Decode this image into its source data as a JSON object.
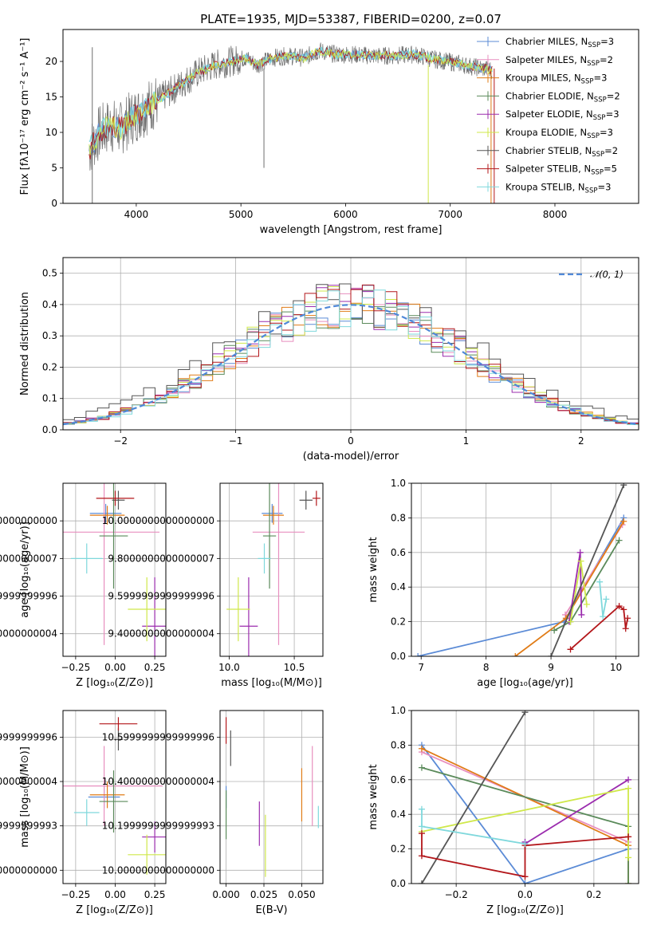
{
  "colors": {
    "Chabrier MILES": "#5b8bd6",
    "Salpeter MILES": "#e88fbf",
    "Kroupa MILES": "#e07b16",
    "Chabrier ELODIE": "#5a8a5a",
    "Salpeter ELODIE": "#9b2cae",
    "Kroupa ELODIE": "#cfe84a",
    "Chabrier STELIB": "#555555",
    "Salpeter STELIB": "#b3161a",
    "Kroupa STELIB": "#7fd8dc",
    "normal": "#4f88d8"
  },
  "chart_data": [
    {
      "id": "spectrum",
      "type": "line",
      "title": "PLATE=1935, MJD=53387, FIBERID=0200, z=0.07",
      "xlabel": "wavelength [Angstrom, rest frame]",
      "ylabel": "Flux [fλ10⁻¹⁷ erg cm⁻² s⁻¹ A⁻¹]",
      "xlim": [
        3300,
        8800
      ],
      "ylim": [
        0,
        24.5
      ],
      "xticks": [
        4000,
        5000,
        6000,
        7000,
        8000
      ],
      "yticks": [
        0,
        5,
        10,
        15,
        20
      ],
      "grid": false,
      "legend_position": "top-right",
      "legend": [
        {
          "label": "Chabrier MILES, N",
          "sub": "SSP",
          "tail": "=3",
          "series": "Chabrier MILES"
        },
        {
          "label": "Salpeter MILES, N",
          "sub": "SSP",
          "tail": "=2",
          "series": "Salpeter MILES"
        },
        {
          "label": "Kroupa MILES, N",
          "sub": "SSP",
          "tail": "=3",
          "series": "Kroupa MILES"
        },
        {
          "label": "Chabrier ELODIE, N",
          "sub": "SSP",
          "tail": "=2",
          "series": "Chabrier ELODIE"
        },
        {
          "label": "Salpeter ELODIE, N",
          "sub": "SSP",
          "tail": "=3",
          "series": "Salpeter ELODIE"
        },
        {
          "label": "Kroupa ELODIE, N",
          "sub": "SSP",
          "tail": "=3",
          "series": "Kroupa ELODIE"
        },
        {
          "label": "Chabrier STELIB, N",
          "sub": "SSP",
          "tail": "=2",
          "series": "Chabrier STELIB"
        },
        {
          "label": "Salpeter STELIB, N",
          "sub": "SSP",
          "tail": "=5",
          "series": "Salpeter STELIB"
        },
        {
          "label": "Kroupa STELIB, N",
          "sub": "SSP",
          "tail": "=3",
          "series": "Kroupa STELIB"
        }
      ],
      "data_x_range": [
        3550,
        7400
      ],
      "continuum": [
        [
          3550,
          7.5
        ],
        [
          3650,
          10
        ],
        [
          3750,
          11
        ],
        [
          3850,
          10.5
        ],
        [
          3950,
          12
        ],
        [
          4050,
          13
        ],
        [
          4150,
          14
        ],
        [
          4300,
          15.5
        ],
        [
          4450,
          17
        ],
        [
          4600,
          18.5
        ],
        [
          4750,
          19.5
        ],
        [
          4900,
          20
        ],
        [
          5050,
          20.5
        ],
        [
          5150,
          19.5
        ],
        [
          5300,
          20.5
        ],
        [
          5450,
          20.8
        ],
        [
          5600,
          20.5
        ],
        [
          5750,
          21.5
        ],
        [
          5900,
          21
        ],
        [
          6050,
          21
        ],
        [
          6250,
          20.8
        ],
        [
          6450,
          20.8
        ],
        [
          6650,
          21
        ],
        [
          6850,
          20.3
        ],
        [
          7050,
          19.8
        ],
        [
          7200,
          19.3
        ],
        [
          7400,
          18.8
        ]
      ],
      "model_series": [
        "Chabrier MILES",
        "Kroupa STELIB",
        "Salpeter STELIB",
        "Kroupa ELODIE"
      ],
      "features": [
        {
          "series": "Kroupa ELODIE",
          "x": 6790,
          "y_from": 19.5,
          "y_to": 0
        },
        {
          "series": "Kroupa MILES",
          "x": 7390,
          "y_from": 19,
          "y_to": 0
        },
        {
          "series": "Salpeter STELIB",
          "x": 7420,
          "y_from": 19,
          "y_to": 0
        },
        {
          "series": "data",
          "x": 5220,
          "y_from": 19,
          "y_to": 5
        },
        {
          "series": "data",
          "x": 3580,
          "y_from": 0,
          "y_to": 22
        }
      ]
    },
    {
      "id": "residuals",
      "type": "histogram",
      "xlabel": "(data-model)/error",
      "ylabel": "Normed distribution",
      "xlim": [
        -2.5,
        2.5
      ],
      "ylim": [
        0,
        0.55
      ],
      "xticks": [
        -2,
        -1,
        0,
        1,
        2
      ],
      "yticks": [
        0.0,
        0.1,
        0.2,
        0.3,
        0.4,
        0.5
      ],
      "grid": true,
      "legend_position": "top-right",
      "legend": [
        {
          "label": "𝒩(0, 1)",
          "series": "normal",
          "style": "dashed"
        }
      ],
      "bins": {
        "start": -2.5,
        "width": 0.1,
        "count": 50
      },
      "normal": {
        "mean": 0,
        "sigma": 1
      }
    },
    {
      "id": "age-vs-Z",
      "type": "errorbar",
      "xlabel": "Z [log₁₀(Z/Z⊙)]",
      "ylabel": "age  [log₁₀(age/yr)]",
      "xlim": [
        -0.33,
        0.32
      ],
      "ylim": [
        9.28,
        10.2
      ],
      "xticks": [
        -0.25,
        0.0,
        0.25
      ],
      "xticklabels": [
        "−0.25",
        "0.00",
        "0.25"
      ],
      "yticks": [
        9.4,
        9.6,
        9.8,
        10.0
      ],
      "grid": true,
      "points": [
        {
          "series": "Chabrier MILES",
          "x": -0.06,
          "xerr": 0.1,
          "y": 10.04,
          "yerr": 0.05
        },
        {
          "series": "Salpeter MILES",
          "x": -0.07,
          "xerr": 0.35,
          "y": 9.94,
          "yerr": 0.6
        },
        {
          "series": "Kroupa MILES",
          "x": -0.05,
          "xerr": 0.11,
          "y": 10.03,
          "yerr": 0.05
        },
        {
          "series": "Chabrier ELODIE",
          "x": -0.01,
          "xerr": 0.09,
          "y": 9.92,
          "yerr": 0.28
        },
        {
          "series": "Salpeter ELODIE",
          "x": 0.25,
          "xerr": 0.08,
          "y": 9.44,
          "yerr": 0.26
        },
        {
          "series": "Kroupa ELODIE",
          "x": 0.2,
          "xerr": 0.12,
          "y": 9.53,
          "yerr": 0.17
        },
        {
          "series": "Chabrier STELIB",
          "x": 0.02,
          "xerr": 0.04,
          "y": 10.11,
          "yerr": 0.05
        },
        {
          "series": "Salpeter STELIB",
          "x": 0.0,
          "xerr": 0.12,
          "y": 10.12,
          "yerr": 0.04
        },
        {
          "series": "Kroupa STELIB",
          "x": -0.18,
          "xerr": 0.1,
          "y": 9.8,
          "yerr": 0.08
        }
      ]
    },
    {
      "id": "age-vs-mass",
      "type": "errorbar",
      "xlabel": "mass [log₁₀(M/M⊙)]",
      "ylabel": "",
      "xlim": [
        9.93,
        10.72
      ],
      "ylim": [
        9.28,
        10.2
      ],
      "xticks": [
        10.0,
        10.5
      ],
      "xticklabels": [
        "10.0",
        "10.5"
      ],
      "yticks": [
        9.4,
        9.6,
        9.8,
        10.0
      ],
      "grid": true,
      "points": [
        {
          "series": "Chabrier MILES",
          "x": 10.33,
          "xerr": 0.08,
          "y": 10.04,
          "yerr": 0.05
        },
        {
          "series": "Salpeter MILES",
          "x": 10.38,
          "xerr": 0.2,
          "y": 9.94,
          "yerr": 0.6
        },
        {
          "series": "Kroupa MILES",
          "x": 10.34,
          "xerr": 0.08,
          "y": 10.03,
          "yerr": 0.05
        },
        {
          "series": "Chabrier ELODIE",
          "x": 10.31,
          "xerr": 0.05,
          "y": 9.92,
          "yerr": 0.28
        },
        {
          "series": "Salpeter ELODIE",
          "x": 10.15,
          "xerr": 0.07,
          "y": 9.44,
          "yerr": 0.26
        },
        {
          "series": "Kroupa ELODIE",
          "x": 10.07,
          "xerr": 0.09,
          "y": 9.53,
          "yerr": 0.17
        },
        {
          "series": "Chabrier STELIB",
          "x": 10.59,
          "xerr": 0.05,
          "y": 10.11,
          "yerr": 0.05
        },
        {
          "series": "Salpeter STELIB",
          "x": 10.67,
          "xerr": 0.03,
          "y": 10.12,
          "yerr": 0.04
        },
        {
          "series": "Kroupa STELIB",
          "x": 10.27,
          "xerr": 0.05,
          "y": 9.8,
          "yerr": 0.08
        }
      ]
    },
    {
      "id": "massweight-vs-age",
      "type": "line",
      "xlabel": "age  [log₁₀(age/yr)]",
      "ylabel": "mass weight",
      "xlim": [
        6.85,
        10.35
      ],
      "ylim": [
        0,
        1
      ],
      "xticks": [
        7,
        8,
        9,
        10
      ],
      "xticklabels": [
        "7",
        "8",
        "9",
        "10"
      ],
      "yticks": [
        0.0,
        0.2,
        0.4,
        0.6,
        0.8,
        1.0
      ],
      "grid": true,
      "series": [
        {
          "name": "Chabrier MILES",
          "x": [
            6.95,
            9.2,
            10.12
          ],
          "y": [
            0.0,
            0.2,
            0.8
          ]
        },
        {
          "name": "Salpeter MILES",
          "x": [
            9.22,
            10.1
          ],
          "y": [
            0.24,
            0.76
          ]
        },
        {
          "name": "Kroupa MILES",
          "x": [
            8.45,
            9.23,
            10.12
          ],
          "y": [
            0.0,
            0.22,
            0.78
          ]
        },
        {
          "name": "Chabrier ELODIE",
          "x": [
            9.05,
            9.3,
            10.05
          ],
          "y": [
            0.15,
            0.2,
            0.67
          ]
        },
        {
          "name": "Salpeter ELODIE",
          "x": [
            9.28,
            9.45,
            9.47
          ],
          "y": [
            0.2,
            0.6,
            0.24
          ]
        },
        {
          "name": "Kroupa ELODIE",
          "x": [
            9.3,
            9.46,
            9.55
          ],
          "y": [
            0.2,
            0.55,
            0.3
          ]
        },
        {
          "name": "Chabrier STELIB",
          "x": [
            9.0,
            10.12
          ],
          "y": [
            0.0,
            0.99
          ]
        },
        {
          "name": "Salpeter STELIB",
          "x": [
            9.3,
            10.05,
            10.12,
            10.15,
            10.18
          ],
          "y": [
            0.04,
            0.29,
            0.27,
            0.16,
            0.22
          ]
        },
        {
          "name": "Kroupa STELIB",
          "x": [
            9.75,
            9.8,
            9.85
          ],
          "y": [
            0.43,
            0.23,
            0.33
          ]
        }
      ]
    },
    {
      "id": "mass-vs-Z",
      "type": "errorbar",
      "xlabel": "Z [log₁₀(Z/Z⊙)]",
      "ylabel": "mass [log₁₀(M/M⊙)]",
      "xlim": [
        -0.33,
        0.32
      ],
      "ylim": [
        9.94,
        10.72
      ],
      "xticks": [
        -0.25,
        0.0,
        0.25
      ],
      "xticklabels": [
        "−0.25",
        "0.00",
        "0.25"
      ],
      "yticks": [
        10.0,
        10.2,
        10.4,
        10.6
      ],
      "grid": true,
      "points": [
        {
          "series": "Chabrier MILES",
          "x": -0.07,
          "xerr": 0.1,
          "y": 10.33,
          "yerr": 0.05
        },
        {
          "series": "Salpeter MILES",
          "x": -0.07,
          "xerr": 0.37,
          "y": 10.38,
          "yerr": 0.18
        },
        {
          "series": "Kroupa MILES",
          "x": -0.05,
          "xerr": 0.11,
          "y": 10.34,
          "yerr": 0.06
        },
        {
          "series": "Chabrier ELODIE",
          "x": -0.01,
          "xerr": 0.09,
          "y": 10.31,
          "yerr": 0.14
        },
        {
          "series": "Salpeter ELODIE",
          "x": 0.25,
          "xerr": 0.08,
          "y": 10.15,
          "yerr": 0.07
        },
        {
          "series": "Kroupa ELODIE",
          "x": 0.2,
          "xerr": 0.12,
          "y": 10.07,
          "yerr": 0.09
        },
        {
          "series": "Chabrier STELIB",
          "x": 0.02,
          "xerr": 0.03,
          "y": 10.59,
          "yerr": 0.05
        },
        {
          "series": "Salpeter STELIB",
          "x": 0.02,
          "xerr": 0.12,
          "y": 10.66,
          "yerr": 0.03
        },
        {
          "series": "Kroupa STELIB",
          "x": -0.18,
          "xerr": 0.08,
          "y": 10.26,
          "yerr": 0.06
        }
      ]
    },
    {
      "id": "mass-vs-EBV",
      "type": "errorbar",
      "xlabel": "E(B-V)",
      "ylabel": "",
      "xlim": [
        -0.004,
        0.064
      ],
      "ylim": [
        9.94,
        10.72
      ],
      "xticks": [
        0.0,
        0.025,
        0.05
      ],
      "xticklabels": [
        "0.000",
        "0.025",
        "0.050"
      ],
      "yticks": [
        10.0,
        10.2,
        10.4,
        10.6
      ],
      "grid": true,
      "points": [
        {
          "series": "Chabrier MILES",
          "x": 0.0,
          "xerr": 0,
          "y": 10.33,
          "yerr": 0.05
        },
        {
          "series": "Salpeter MILES",
          "x": 0.057,
          "xerr": 0,
          "y": 10.38,
          "yerr": 0.18
        },
        {
          "series": "Kroupa MILES",
          "x": 0.05,
          "xerr": 0,
          "y": 10.34,
          "yerr": 0.12
        },
        {
          "series": "Chabrier ELODIE",
          "x": 0.0,
          "xerr": 0,
          "y": 10.25,
          "yerr": 0.11
        },
        {
          "series": "Salpeter ELODIE",
          "x": 0.022,
          "xerr": 0,
          "y": 10.21,
          "yerr": 0.1
        },
        {
          "series": "Kroupa ELODIE",
          "x": 0.026,
          "xerr": 0,
          "y": 10.11,
          "yerr": 0.14
        },
        {
          "series": "Chabrier STELIB",
          "x": 0.003,
          "xerr": 0,
          "y": 10.55,
          "yerr": 0.08
        },
        {
          "series": "Salpeter STELIB",
          "x": 0.0,
          "xerr": 0,
          "y": 10.63,
          "yerr": 0.06
        },
        {
          "series": "Kroupa STELIB",
          "x": 0.061,
          "xerr": 0,
          "y": 10.24,
          "yerr": 0.05
        }
      ]
    },
    {
      "id": "massweight-vs-Z",
      "type": "line",
      "xlabel": "Z [log₁₀(Z/Z⊙)]",
      "ylabel": "mass weight",
      "xlim": [
        -0.33,
        0.33
      ],
      "ylim": [
        0,
        1
      ],
      "xticks": [
        -0.2,
        0.0,
        0.2
      ],
      "xticklabels": [
        "−0.2",
        "0.0",
        "0.2"
      ],
      "yticks": [
        0.0,
        0.2,
        0.4,
        0.6,
        0.8,
        1.0
      ],
      "grid": true,
      "series": [
        {
          "name": "Chabrier MILES",
          "x": [
            -0.3,
            0.0,
            0.3
          ],
          "y": [
            0.8,
            0.0,
            0.2
          ]
        },
        {
          "name": "Salpeter MILES",
          "x": [
            -0.3,
            0.3
          ],
          "y": [
            0.76,
            0.24
          ]
        },
        {
          "name": "Kroupa MILES",
          "x": [
            -0.3,
            0.3,
            0.3
          ],
          "y": [
            0.78,
            0.22,
            0.0
          ]
        },
        {
          "name": "Chabrier ELODIE",
          "x": [
            -0.3,
            0.3,
            0.3
          ],
          "y": [
            0.67,
            0.33,
            0.0
          ]
        },
        {
          "name": "Salpeter ELODIE",
          "x": [
            0.0,
            0.0,
            0.3
          ],
          "y": [
            0.24,
            0.23,
            0.6
          ]
        },
        {
          "name": "Kroupa ELODIE",
          "x": [
            -0.3,
            0.3,
            0.3
          ],
          "y": [
            0.3,
            0.55,
            0.15
          ]
        },
        {
          "name": "Chabrier STELIB",
          "x": [
            -0.3,
            0.0
          ],
          "y": [
            0.0,
            0.99
          ]
        },
        {
          "name": "Salpeter STELIB",
          "x": [
            -0.3,
            -0.3,
            0.0,
            0.0,
            0.3,
            0.3
          ],
          "y": [
            0.29,
            0.16,
            0.04,
            0.22,
            0.27,
            0.27
          ]
        },
        {
          "name": "Kroupa STELIB",
          "x": [
            -0.3,
            -0.3,
            0.0
          ],
          "y": [
            0.43,
            0.33,
            0.23
          ]
        }
      ]
    }
  ]
}
